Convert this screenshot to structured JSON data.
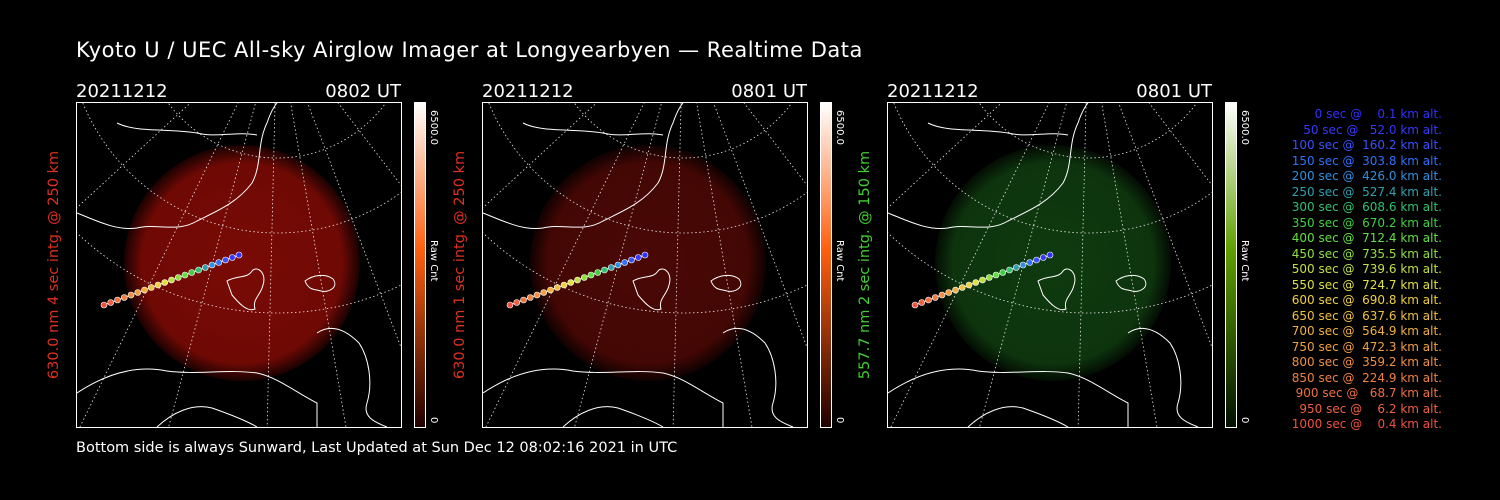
{
  "title": "Kyoto U / UEC All-sky Airglow Imager at Longyearbyen — Realtime Data",
  "footer": "Bottom side is always Sunward, Last Updated at Sun Dec 12 08:02:16 2021 in UTC",
  "panels": [
    {
      "date": "20211212",
      "time": "0802 UT",
      "ylabel": "630.0 nm 4 sec intg. @ 250 km",
      "label_color": "#e03020",
      "glow_color": "#7a0a05",
      "bar_top": "#ffffff",
      "bar_mid": "#ff6010",
      "bar_bottom": "#200000",
      "cbar_max": "6500.0",
      "cbar_unit": "Raw Cnt",
      "cbar_min": "0"
    },
    {
      "date": "20211212",
      "time": "0801 UT",
      "ylabel": "630.0 nm 1 sec intg. @ 250 km",
      "label_color": "#e03020",
      "glow_color": "#4a0805",
      "bar_top": "#ffffff",
      "bar_mid": "#ff6010",
      "bar_bottom": "#200000",
      "cbar_max": "6500.0",
      "cbar_unit": "Raw Cnt",
      "cbar_min": "0"
    },
    {
      "date": "20211212",
      "time": "0801 UT",
      "ylabel": "557.7 nm 2 sec intg. @ 150 km",
      "label_color": "#40d030",
      "glow_color": "#0f3a0f",
      "bar_top": "#ffffff",
      "bar_mid": "#60a000",
      "bar_bottom": "#001000",
      "cbar_max": "6500.0",
      "cbar_unit": "Raw Cnt",
      "cbar_min": "0"
    }
  ],
  "legend": [
    {
      "text": "   0 sec @    0.1 km alt.",
      "color": "#3030ff"
    },
    {
      "text": "  50 sec @   52.0 km alt.",
      "color": "#3838ff"
    },
    {
      "text": " 100 sec @  160.2 km alt.",
      "color": "#3a50ff"
    },
    {
      "text": " 150 sec @  303.8 km alt.",
      "color": "#3070ff"
    },
    {
      "text": " 200 sec @  426.0 km alt.",
      "color": "#3090e0"
    },
    {
      "text": " 250 sec @  527.4 km alt.",
      "color": "#30a0b0"
    },
    {
      "text": " 300 sec @  608.6 km alt.",
      "color": "#30c070"
    },
    {
      "text": " 350 sec @  670.2 km alt.",
      "color": "#40d040"
    },
    {
      "text": " 400 sec @  712.4 km alt.",
      "color": "#60e040"
    },
    {
      "text": " 450 sec @  735.5 km alt.",
      "color": "#90e040"
    },
    {
      "text": " 500 sec @  739.6 km alt.",
      "color": "#c0e040"
    },
    {
      "text": " 550 sec @  724.7 km alt.",
      "color": "#e0e040"
    },
    {
      "text": " 600 sec @  690.8 km alt.",
      "color": "#f0d040"
    },
    {
      "text": " 650 sec @  637.6 km alt.",
      "color": "#f0c040"
    },
    {
      "text": " 700 sec @  564.9 km alt.",
      "color": "#f0b040"
    },
    {
      "text": " 750 sec @  472.3 km alt.",
      "color": "#f0a040"
    },
    {
      "text": " 800 sec @  359.2 km alt.",
      "color": "#f09040"
    },
    {
      "text": " 850 sec @  224.9 km alt.",
      "color": "#f08040"
    },
    {
      "text": " 900 sec @   68.7 km alt.",
      "color": "#f07040"
    },
    {
      "text": " 950 sec @    6.2 km alt.",
      "color": "#f06040"
    },
    {
      "text": "1000 sec @    0.4 km alt.",
      "color": "#f05040"
    }
  ]
}
